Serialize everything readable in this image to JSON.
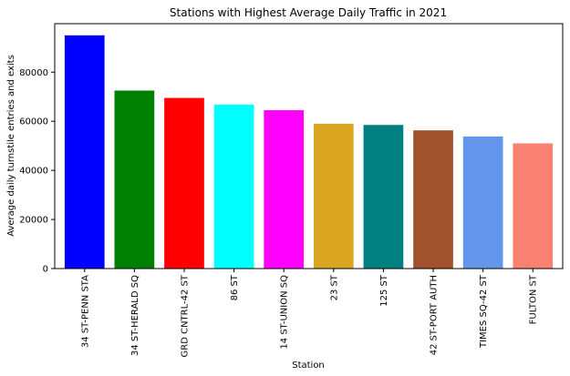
{
  "chart_data": {
    "type": "bar",
    "title": "Stations with Highest Average Daily Traffic in 2021",
    "xlabel": "Station",
    "ylabel": "Average daily turnstile entries and exits",
    "categories": [
      "34 ST-PENN STA",
      "34 ST-HERALD SQ",
      "GRD CNTRL-42 ST",
      "86 ST",
      "14 ST-UNION SQ",
      "23 ST",
      "125 ST",
      "42 ST-PORT AUTH",
      "TIMES SQ-42 ST",
      "FULTON ST"
    ],
    "values": [
      95000,
      72500,
      69500,
      66800,
      64500,
      59000,
      58500,
      56300,
      53800,
      51000
    ],
    "colors": [
      "#0000ff",
      "#008000",
      "#ff0000",
      "#00ffff",
      "#ff00ff",
      "#daa520",
      "#008080",
      "#a0522d",
      "#6495ed",
      "#fa8072"
    ],
    "ylim": [
      0,
      99750
    ],
    "yticks": [
      0,
      20000,
      40000,
      60000,
      80000
    ],
    "ytick_labels": [
      "0",
      "20000",
      "40000",
      "60000",
      "80000"
    ],
    "grid": false,
    "legend": false
  }
}
